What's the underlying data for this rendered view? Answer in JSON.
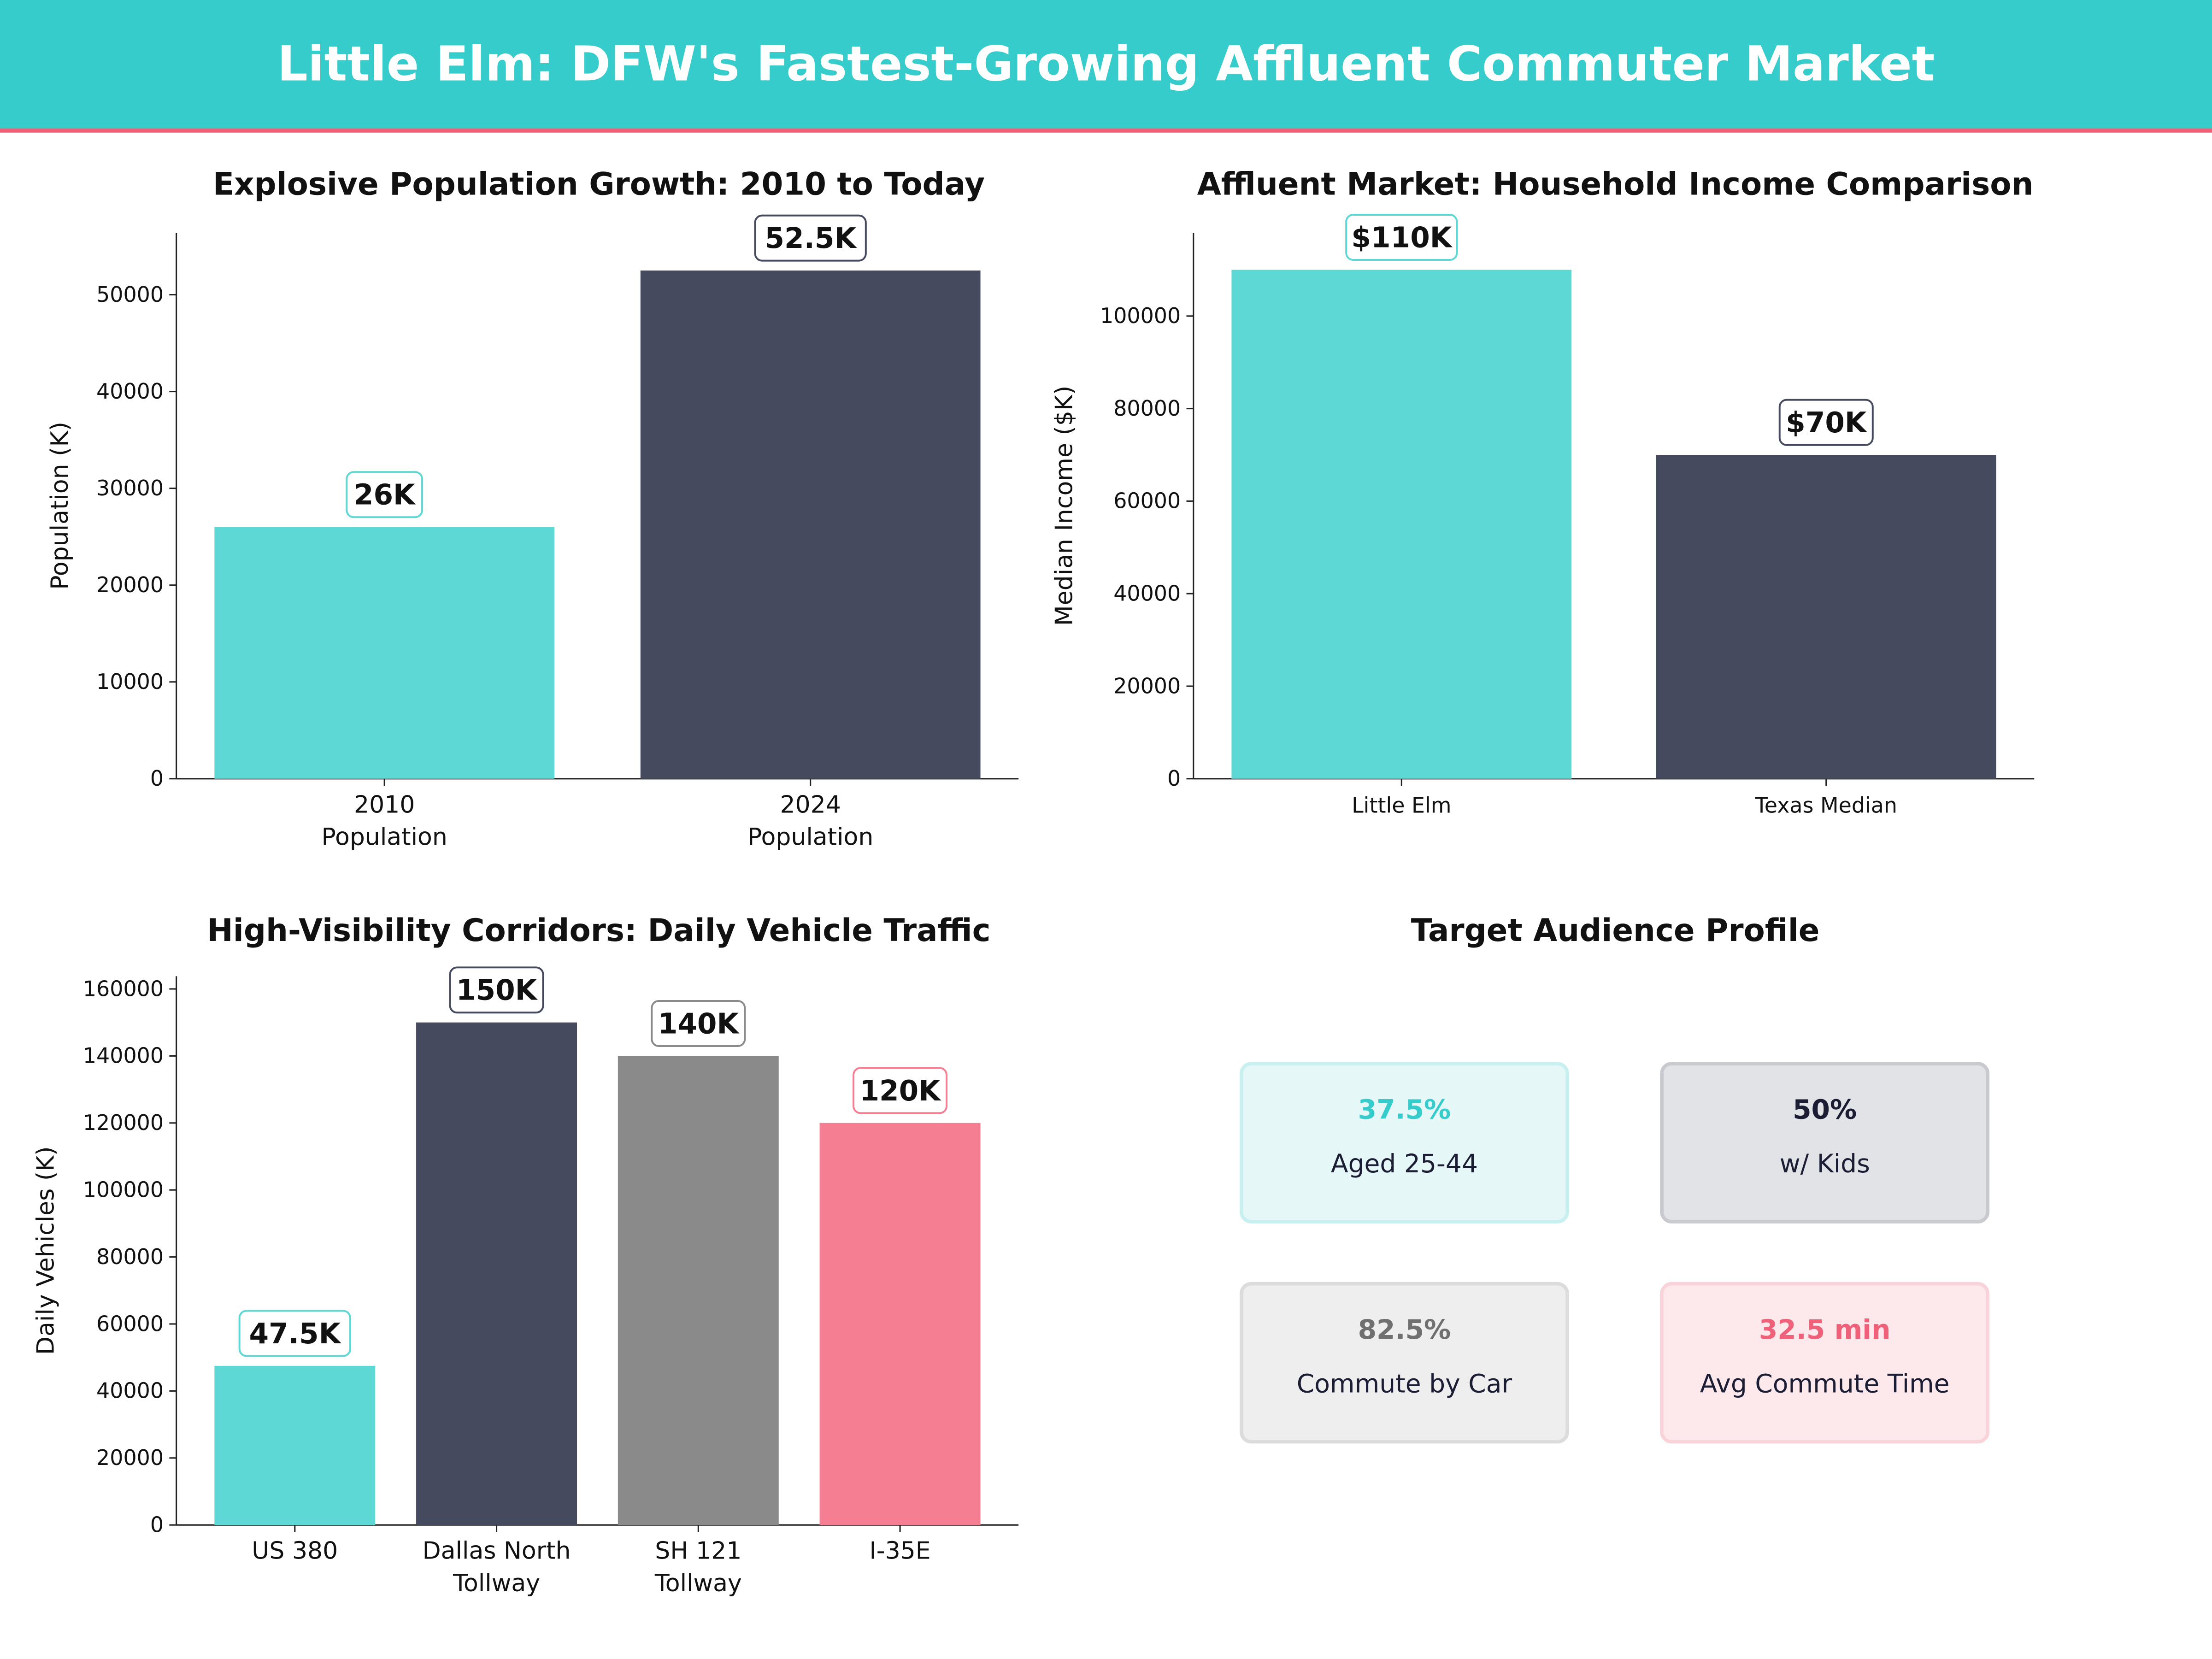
{
  "header": {
    "title": "Little Elm: DFW's Fastest-Growing Affluent Commuter Market"
  },
  "colors": {
    "header_bg": "#36cccc",
    "header_stripe": "#ef6079",
    "teal": "#5dd8d4",
    "navy": "#464a5e",
    "gray": "#8a8a8a",
    "pink": "#f67e93"
  },
  "chart_data": [
    {
      "type": "bar",
      "title": "Explosive Population Growth: 2010 to Today",
      "xlabel": "",
      "ylabel": "Population (K)",
      "categories": [
        "2010\nPopulation",
        "2024\nPopulation"
      ],
      "values": [
        26000,
        52500
      ],
      "data_labels": [
        "26K",
        "52.5K"
      ],
      "bar_colors": [
        "#5dd8d4",
        "#464a5e"
      ],
      "ylim": [
        0,
        56400
      ],
      "yticks": [
        0,
        10000,
        20000,
        30000,
        40000,
        50000
      ],
      "grid": false
    },
    {
      "type": "bar",
      "title": "Affluent Market: Household Income Comparison",
      "xlabel": "",
      "ylabel": "Median Income ($K)",
      "categories": [
        "Little Elm",
        "Texas Median"
      ],
      "values": [
        110000,
        70000
      ],
      "data_labels": [
        "$110K",
        "$70K"
      ],
      "bar_colors": [
        "#5dd8d4",
        "#464a5e"
      ],
      "ylim": [
        0,
        118000
      ],
      "yticks": [
        0,
        20000,
        40000,
        60000,
        80000,
        100000
      ],
      "grid": false
    },
    {
      "type": "bar",
      "title": "High-Visibility Corridors: Daily Vehicle Traffic",
      "xlabel": "",
      "ylabel": "Daily Vehicles (K)",
      "categories": [
        "US 380",
        "Dallas North\nTollway",
        "SH 121\nTollway",
        "I-35E"
      ],
      "values": [
        47500,
        150000,
        140000,
        120000
      ],
      "data_labels": [
        "47.5K",
        "150K",
        "140K",
        "120K"
      ],
      "bar_colors": [
        "#5dd8d4",
        "#464a5e",
        "#8a8a8a",
        "#f67e93"
      ],
      "ylim": [
        0,
        163800
      ],
      "yticks": [
        0,
        20000,
        40000,
        60000,
        80000,
        100000,
        120000,
        140000,
        160000
      ],
      "grid": false
    }
  ],
  "profile": {
    "title": "Target Audience Profile",
    "cards": [
      {
        "value": "37.5%",
        "label": "Aged 25-44",
        "color": "#36cccc",
        "bg": "#e6f7f7",
        "border": "#c8f0f0"
      },
      {
        "value": "50%",
        "label": "w/ Kids",
        "color": "#1a1d33",
        "bg": "#e2e3e7",
        "border": "#c9cacf"
      },
      {
        "value": "82.5%",
        "label": "Commute by Car",
        "color": "#707070",
        "bg": "#eeeeee",
        "border": "#dcdcdc"
      },
      {
        "value": "32.5 min",
        "label": "Avg Commute Time",
        "color": "#ef6079",
        "bg": "#fde9ec",
        "border": "#f9d3da"
      }
    ]
  }
}
